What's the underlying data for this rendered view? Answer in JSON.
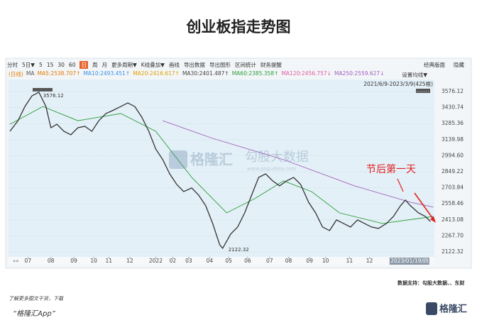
{
  "title": "创业板指走势图",
  "toolbar": {
    "items": [
      "分时",
      "5日▼",
      "5",
      "15",
      "30",
      "60",
      "日",
      "周",
      "月",
      "更多周期▼",
      "K线叠加▼",
      "画线",
      "导出数据",
      "导出图形",
      "区间统计",
      "财务提醒"
    ],
    "active_index": 6,
    "right": [
      "经典版面",
      "隐藏"
    ]
  },
  "ma_legend": [
    {
      "text": "(日线)",
      "color": "#e07b00"
    },
    {
      "text": "MA",
      "color": "#555555"
    },
    {
      "text": "MA5:2538.707↑",
      "color": "#e07b00"
    },
    {
      "text": "MA10:2493.451↑",
      "color": "#3a8ee6"
    },
    {
      "text": "MA20:2416.617↑",
      "color": "#e0a000"
    },
    {
      "text": "MA30:2401.487↑",
      "color": "#444444"
    },
    {
      "text": "MA60:2385.358↑",
      "color": "#2a9d3a"
    },
    {
      "text": "MA120:2456.757↓",
      "color": "#e05aa0"
    },
    {
      "text": "MA250:2559.627↓",
      "color": "#a060c0"
    }
  ],
  "settings_label": "设置均线▼",
  "range_label": "2021/6/9-2023/3/9(425根)",
  "watermark": {
    "brand": "格隆汇",
    "name": "勾股大数据",
    "url": "www.gogudata.com"
  },
  "chart_data": {
    "type": "line",
    "xlim": [
      0,
      425
    ],
    "ylim": [
      2077,
      3628
    ],
    "xticks": [
      {
        "value": 18,
        "label": "07"
      },
      {
        "value": 41,
        "label": "08"
      },
      {
        "value": 64,
        "label": "09"
      },
      {
        "value": 84,
        "label": "10"
      },
      {
        "value": 99,
        "label": "11"
      },
      {
        "value": 120,
        "label": "12"
      },
      {
        "value": 146,
        "label": "2022"
      },
      {
        "value": 163,
        "label": "02"
      },
      {
        "value": 179,
        "label": "03"
      },
      {
        "value": 200,
        "label": "04"
      },
      {
        "value": 219,
        "label": "05"
      },
      {
        "value": 238,
        "label": "06"
      },
      {
        "value": 260,
        "label": "07"
      },
      {
        "value": 279,
        "label": "08"
      },
      {
        "value": 300,
        "label": "09"
      },
      {
        "value": 316,
        "label": "10"
      },
      {
        "value": 340,
        "label": "11"
      },
      {
        "value": 360,
        "label": "12"
      }
    ],
    "cursor": {
      "value": 400,
      "label": "2023/01/19/四"
    },
    "yticks": [
      {
        "value": 3576.12,
        "label": "3576.12"
      },
      {
        "value": 3430.74,
        "label": "3430.74"
      },
      {
        "value": 3285.36,
        "label": "3285.36"
      },
      {
        "value": 3139.98,
        "label": "3139.98"
      },
      {
        "value": 2994.6,
        "label": "2994.60"
      },
      {
        "value": 2849.22,
        "label": "2849.22"
      },
      {
        "value": 2703.84,
        "label": "2703.84"
      },
      {
        "value": 2558.46,
        "label": "2558.46"
      },
      {
        "value": 2413.08,
        "label": "2413.08"
      },
      {
        "value": 2267.7,
        "label": "2267.70"
      },
      {
        "value": 2122.32,
        "label": "2122.32"
      }
    ],
    "grid": true,
    "high_label": "3576.12",
    "low_label": "2122.32",
    "annotation": "节后第一天",
    "series": [
      {
        "color": "#333333",
        "x": [
          0,
          8,
          15,
          22,
          29,
          36,
          41,
          47,
          54,
          61,
          68,
          75,
          82,
          89,
          96,
          104,
          111,
          118,
          125,
          132,
          139,
          146,
          153,
          160,
          167,
          174,
          182,
          189,
          196,
          203,
          210,
          213,
          221,
          228,
          235,
          242,
          249,
          256,
          263,
          270,
          277,
          284,
          291,
          299,
          306,
          313,
          320,
          327,
          334,
          341,
          348,
          355,
          362,
          369,
          377,
          384,
          391,
          396,
          401,
          409,
          416,
          421
        ],
        "values": [
          3216,
          3312,
          3441,
          3537,
          3570,
          3441,
          3248,
          3280,
          3216,
          3184,
          3248,
          3261,
          3216,
          3312,
          3377,
          3409,
          3441,
          3473,
          3441,
          3345,
          3216,
          3055,
          2959,
          2830,
          2734,
          2669,
          2702,
          2637,
          2541,
          2380,
          2187,
          2155,
          2284,
          2348,
          2476,
          2637,
          2798,
          2830,
          2766,
          2721,
          2766,
          2798,
          2734,
          2573,
          2476,
          2348,
          2316,
          2412,
          2380,
          2348,
          2412,
          2380,
          2348,
          2335,
          2380,
          2444,
          2541,
          2592,
          2541,
          2476,
          2444,
          2399
        ]
      },
      {
        "color": "#2a9d3a",
        "x": [
          0,
          33,
          68,
          111,
          146,
          182,
          217,
          245,
          274,
          302,
          330,
          373,
          424
        ],
        "values": [
          3280,
          3441,
          3312,
          3377,
          3216,
          2798,
          2476,
          2605,
          2766,
          2669,
          2476,
          2380,
          2444
        ]
      },
      {
        "color": "#a060c0",
        "x": [
          153,
          203,
          274,
          345,
          401,
          424
        ],
        "values": [
          3312,
          3152,
          2959,
          2721,
          2573,
          2528
        ]
      }
    ]
  },
  "footer": {
    "source": "数据支持：勾股大数据、、东财",
    "line1": "了解更多图文干货，下载",
    "line2": "“格隆汇App”",
    "logo": "格隆汇"
  }
}
